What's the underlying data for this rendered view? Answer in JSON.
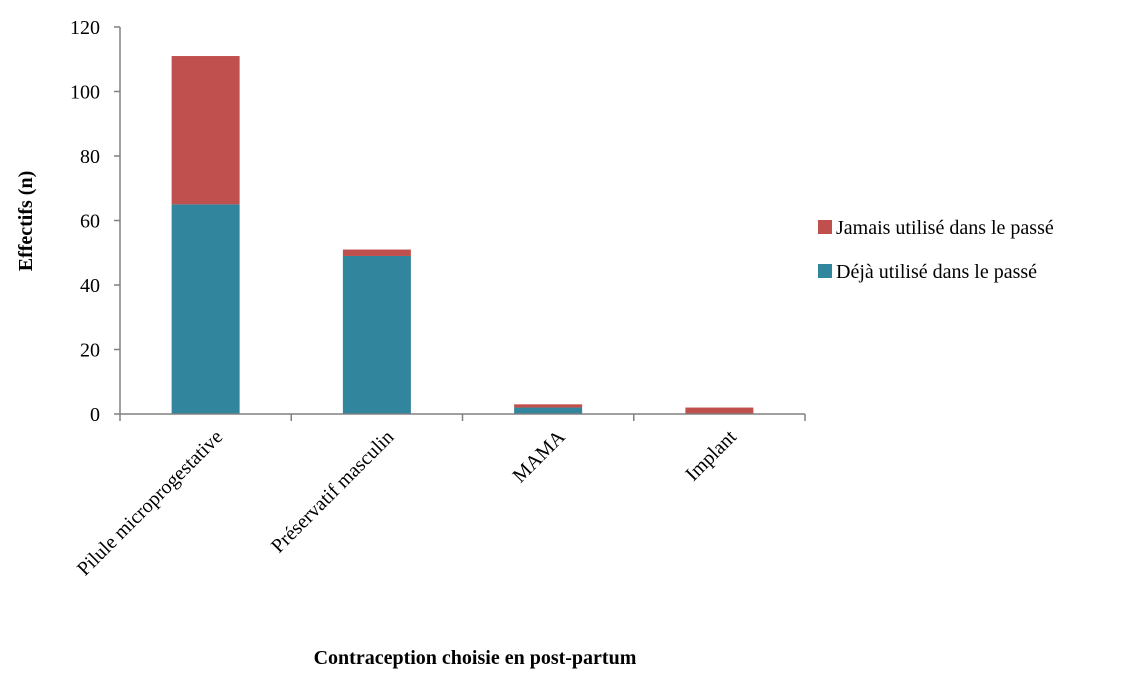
{
  "chart_data": {
    "type": "bar",
    "stacked": true,
    "categories": [
      "Pilule microprogestative",
      "Préservatif masculin",
      "MAMA",
      "Implant"
    ],
    "series": [
      {
        "name": "Déjà utilisé dans le passé",
        "values": [
          65,
          49,
          2,
          0
        ],
        "color": "#31859C"
      },
      {
        "name": "Jamais utilisé dans le passé",
        "values": [
          46,
          2,
          1,
          2
        ],
        "color": "#C0504D"
      }
    ],
    "legend_order": [
      1,
      0
    ],
    "legend_position": "right",
    "xlabel": "Contraception choisie en post-partum",
    "ylabel": "Effectifs (n)",
    "ylim": [
      0,
      120
    ],
    "yticks": [
      0,
      20,
      40,
      60,
      80,
      100,
      120
    ],
    "grid": false
  }
}
